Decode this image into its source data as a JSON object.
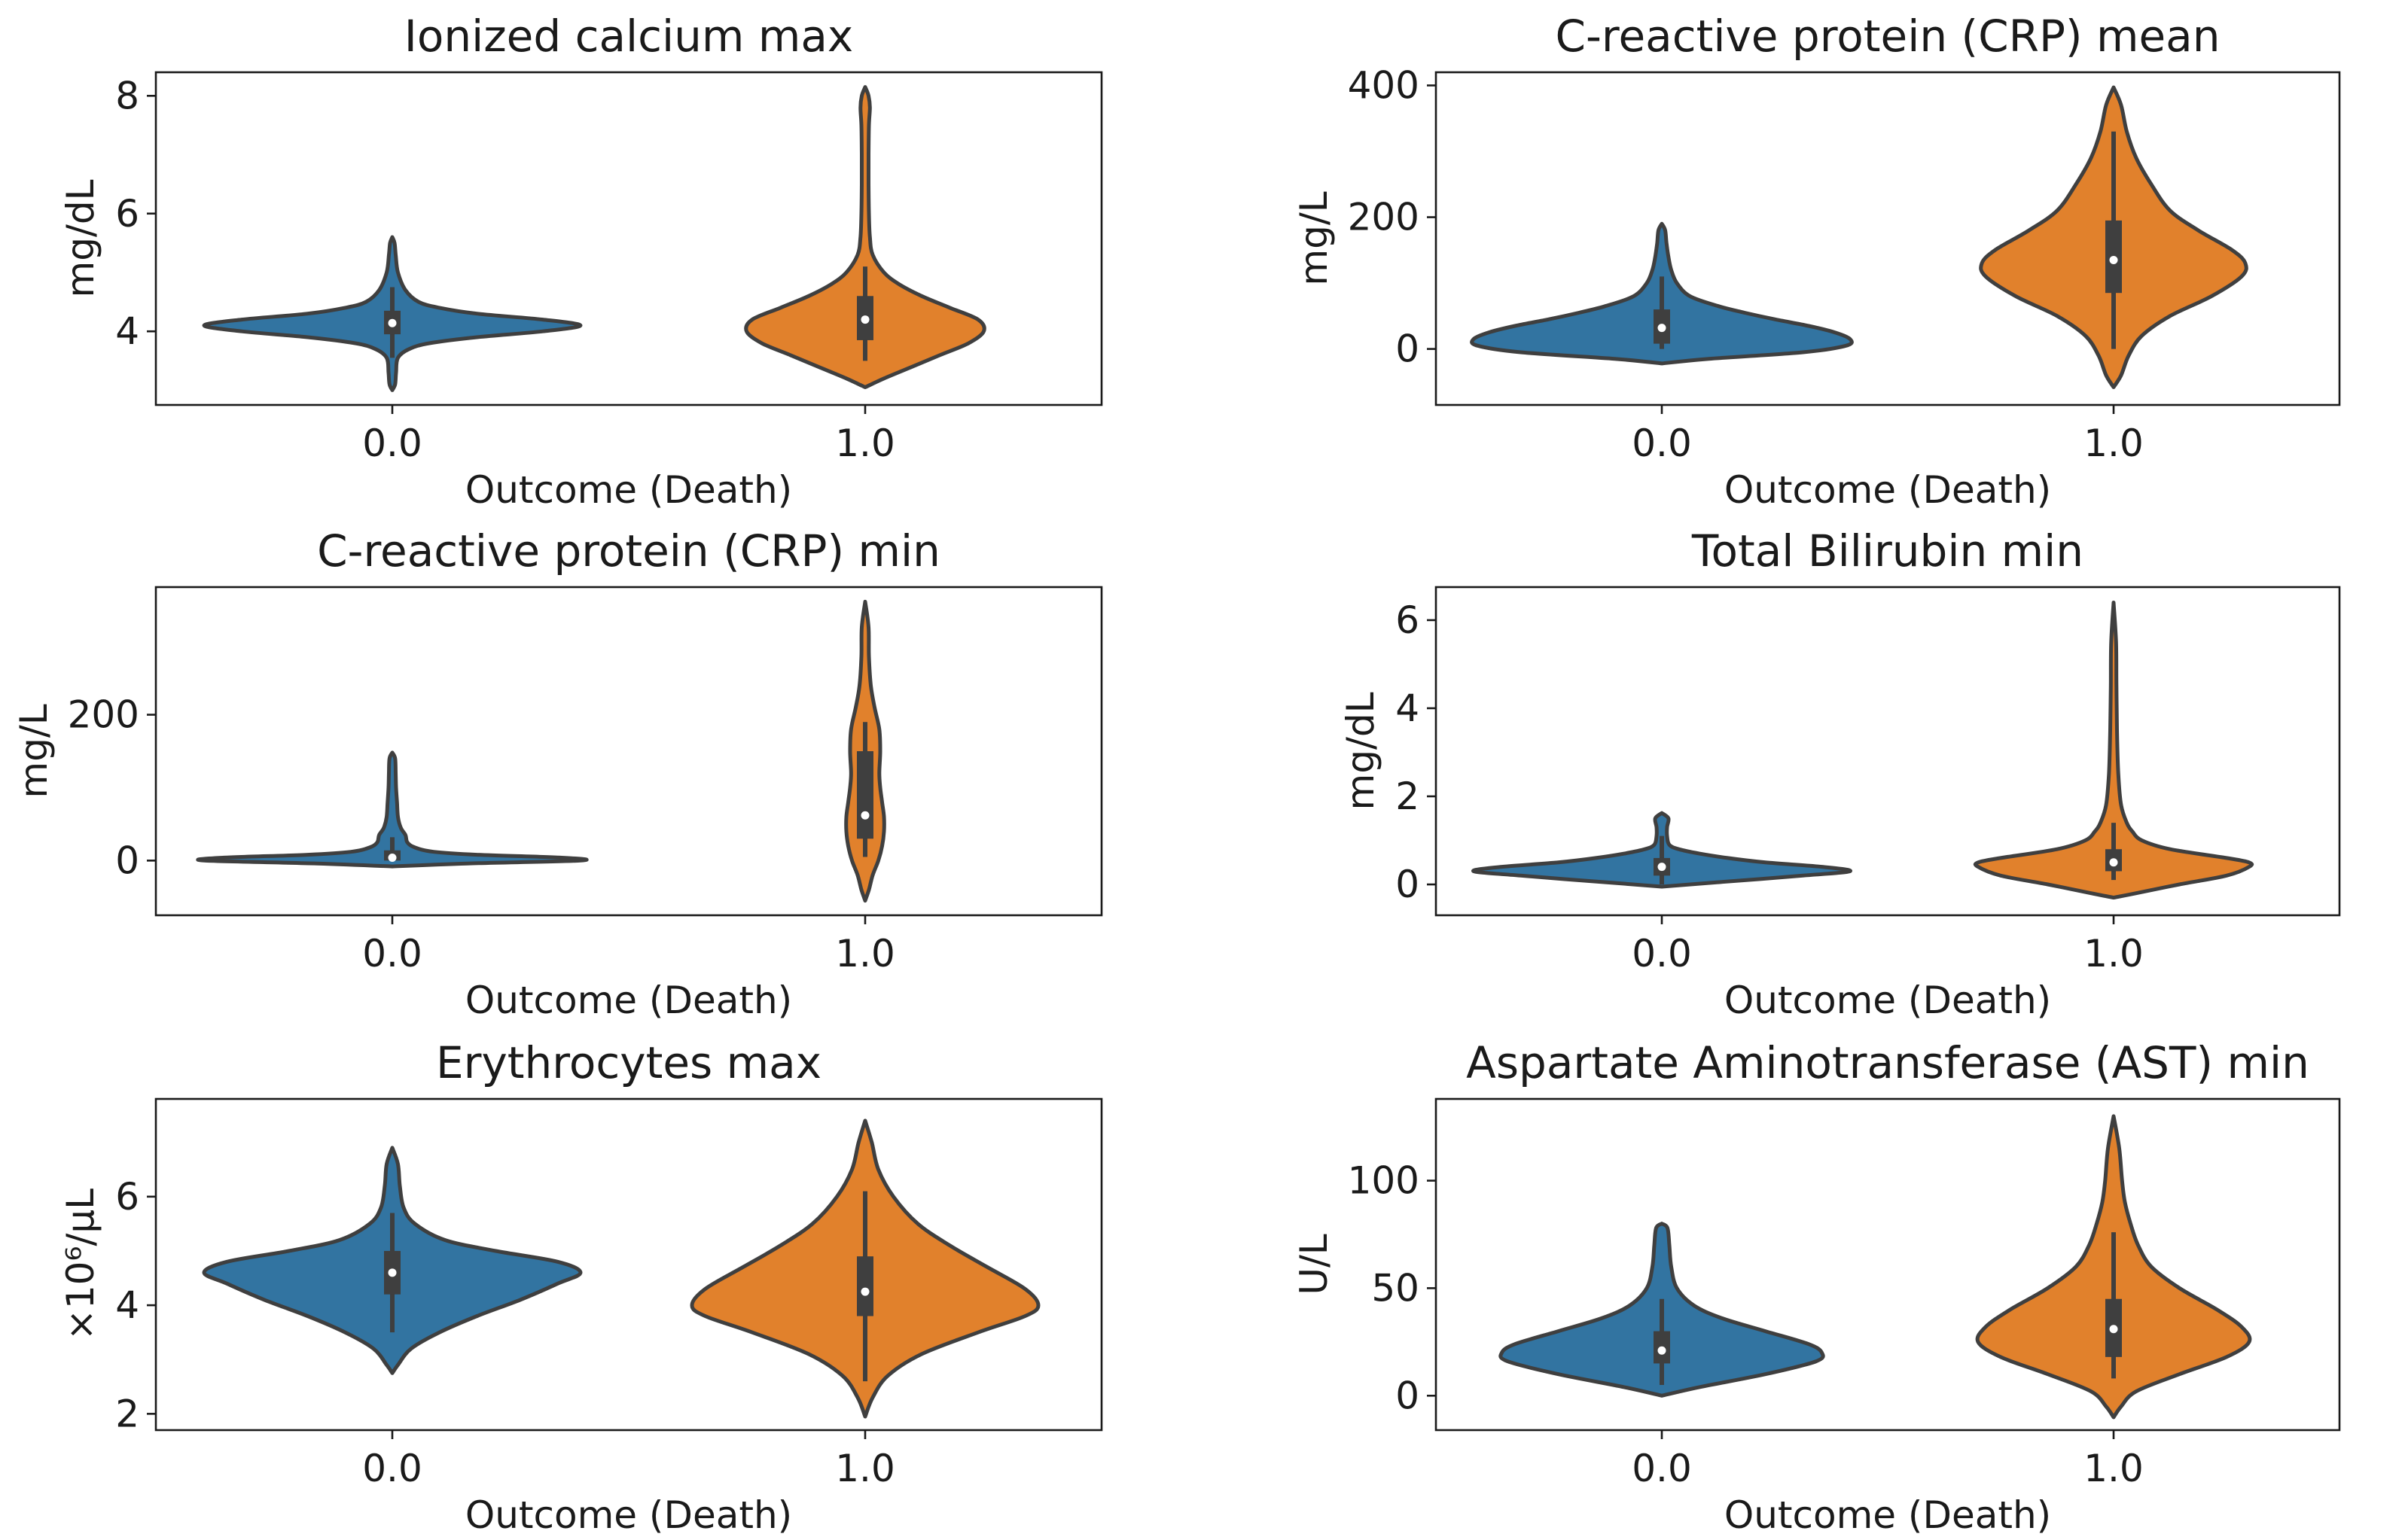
{
  "colors": {
    "outcome_0": "#3274a1",
    "outcome_1": "#e1812c"
  },
  "chart_data": [
    {
      "type": "violin",
      "title": "Ionized calcium  max",
      "xlabel": "Outcome (Death)",
      "ylabel": "mg/dL",
      "categories": [
        "0.0",
        "1.0"
      ],
      "yticks": [
        4,
        6,
        8
      ],
      "ylim": [
        2.75,
        8.4
      ],
      "series": [
        {
          "name": "0.0",
          "q1": 3.95,
          "median": 4.14,
          "q3": 4.35,
          "whisker_low": 3.55,
          "whisker_high": 4.75,
          "profile": [
            [
              3.0,
              0.0
            ],
            [
              3.1,
              0.015
            ],
            [
              3.3,
              0.02
            ],
            [
              3.55,
              0.03
            ],
            [
              3.7,
              0.09
            ],
            [
              3.8,
              0.2
            ],
            [
              3.9,
              0.45
            ],
            [
              4.0,
              0.8
            ],
            [
              4.1,
              1.0
            ],
            [
              4.2,
              0.8
            ],
            [
              4.3,
              0.45
            ],
            [
              4.4,
              0.25
            ],
            [
              4.5,
              0.14
            ],
            [
              4.7,
              0.07
            ],
            [
              5.0,
              0.03
            ],
            [
              5.3,
              0.018
            ],
            [
              5.5,
              0.012
            ],
            [
              5.6,
              0.0
            ]
          ]
        },
        {
          "name": "1.0",
          "q1": 3.85,
          "median": 4.2,
          "q3": 4.6,
          "whisker_low": 3.5,
          "whisker_high": 5.1,
          "profile": [
            [
              3.05,
              0.0
            ],
            [
              3.2,
              0.1
            ],
            [
              3.4,
              0.25
            ],
            [
              3.6,
              0.4
            ],
            [
              3.8,
              0.55
            ],
            [
              4.0,
              0.63
            ],
            [
              4.2,
              0.6
            ],
            [
              4.4,
              0.45
            ],
            [
              4.6,
              0.3
            ],
            [
              4.8,
              0.18
            ],
            [
              5.0,
              0.1
            ],
            [
              5.3,
              0.04
            ],
            [
              5.6,
              0.025
            ],
            [
              6.0,
              0.02
            ],
            [
              6.5,
              0.018
            ],
            [
              7.0,
              0.018
            ],
            [
              7.5,
              0.02
            ],
            [
              7.8,
              0.025
            ],
            [
              8.0,
              0.018
            ],
            [
              8.15,
              0.0
            ]
          ]
        }
      ]
    },
    {
      "type": "violin",
      "title": "C-reactive protein (CRP)  mean",
      "xlabel": "Outcome (Death)",
      "ylabel": "mg/L",
      "categories": [
        "0.0",
        "1.0"
      ],
      "yticks": [
        0,
        200,
        400
      ],
      "ylim": [
        -85,
        420
      ],
      "series": [
        {
          "name": "0.0",
          "q1": 8,
          "median": 32,
          "q3": 60,
          "whisker_low": 0,
          "whisker_high": 110,
          "profile": [
            [
              -22,
              0.0
            ],
            [
              -15,
              0.25
            ],
            [
              -5,
              0.75
            ],
            [
              5,
              0.98
            ],
            [
              15,
              1.0
            ],
            [
              25,
              0.92
            ],
            [
              35,
              0.78
            ],
            [
              45,
              0.6
            ],
            [
              55,
              0.44
            ],
            [
              65,
              0.3
            ],
            [
              80,
              0.15
            ],
            [
              100,
              0.08
            ],
            [
              120,
              0.05
            ],
            [
              140,
              0.035
            ],
            [
              160,
              0.025
            ],
            [
              180,
              0.018
            ],
            [
              190,
              0.0
            ]
          ]
        },
        {
          "name": "1.0",
          "q1": 85,
          "median": 135,
          "q3": 195,
          "whisker_low": 0,
          "whisker_high": 330,
          "profile": [
            [
              -58,
              0.0
            ],
            [
              -40,
              0.04
            ],
            [
              -10,
              0.08
            ],
            [
              20,
              0.15
            ],
            [
              50,
              0.3
            ],
            [
              80,
              0.52
            ],
            [
              110,
              0.68
            ],
            [
              130,
              0.7
            ],
            [
              150,
              0.63
            ],
            [
              180,
              0.45
            ],
            [
              210,
              0.3
            ],
            [
              250,
              0.2
            ],
            [
              290,
              0.12
            ],
            [
              330,
              0.07
            ],
            [
              370,
              0.04
            ],
            [
              397,
              0.0
            ]
          ]
        }
      ]
    },
    {
      "type": "violin",
      "title": "C-reactive protein (CRP)  min",
      "xlabel": "Outcome (Death)",
      "ylabel": "mg/L",
      "categories": [
        "0.0",
        "1.0"
      ],
      "yticks": [
        0,
        200
      ],
      "ylim": [
        -75,
        375
      ],
      "series": [
        {
          "name": "0.0",
          "q1": 0,
          "median": 4,
          "q3": 14,
          "whisker_low": 0,
          "whisker_high": 32,
          "profile": [
            [
              -8,
              0.0
            ],
            [
              -4,
              0.4
            ],
            [
              0,
              1.0
            ],
            [
              4,
              0.9
            ],
            [
              8,
              0.45
            ],
            [
              12,
              0.22
            ],
            [
              18,
              0.12
            ],
            [
              25,
              0.08
            ],
            [
              35,
              0.07
            ],
            [
              45,
              0.045
            ],
            [
              60,
              0.03
            ],
            [
              80,
              0.025
            ],
            [
              100,
              0.02
            ],
            [
              120,
              0.018
            ],
            [
              140,
              0.015
            ],
            [
              148,
              0.0
            ]
          ]
        },
        {
          "name": "1.0",
          "q1": 30,
          "median": 62,
          "q3": 150,
          "whisker_low": 5,
          "whisker_high": 190,
          "profile": [
            [
              -55,
              0.0
            ],
            [
              -40,
              0.02
            ],
            [
              -20,
              0.04
            ],
            [
              0,
              0.07
            ],
            [
              20,
              0.09
            ],
            [
              40,
              0.1
            ],
            [
              60,
              0.1
            ],
            [
              80,
              0.09
            ],
            [
              100,
              0.08
            ],
            [
              120,
              0.075
            ],
            [
              150,
              0.08
            ],
            [
              180,
              0.075
            ],
            [
              210,
              0.05
            ],
            [
              240,
              0.03
            ],
            [
              280,
              0.02
            ],
            [
              320,
              0.018
            ],
            [
              355,
              0.0
            ]
          ]
        }
      ]
    },
    {
      "type": "violin",
      "title": "Total Bilirubin  min",
      "xlabel": "Outcome (Death)",
      "ylabel": "mg/dL",
      "categories": [
        "0.0",
        "1.0"
      ],
      "yticks": [
        0,
        2,
        4,
        6
      ],
      "ylim": [
        -0.7,
        6.75
      ],
      "series": [
        {
          "name": "0.0",
          "q1": 0.2,
          "median": 0.4,
          "q3": 0.6,
          "whisker_low": 0.0,
          "whisker_high": 1.1,
          "profile": [
            [
              -0.05,
              0.0
            ],
            [
              0.05,
              0.3
            ],
            [
              0.2,
              0.75
            ],
            [
              0.3,
              1.0
            ],
            [
              0.4,
              0.85
            ],
            [
              0.5,
              0.55
            ],
            [
              0.6,
              0.35
            ],
            [
              0.7,
              0.2
            ],
            [
              0.8,
              0.09
            ],
            [
              0.9,
              0.04
            ],
            [
              1.1,
              0.028
            ],
            [
              1.3,
              0.028
            ],
            [
              1.5,
              0.035
            ],
            [
              1.62,
              0.0
            ]
          ]
        },
        {
          "name": "1.0",
          "q1": 0.3,
          "median": 0.5,
          "q3": 0.8,
          "whisker_low": 0.1,
          "whisker_high": 1.4,
          "profile": [
            [
              -0.3,
              0.0
            ],
            [
              -0.2,
              0.12
            ],
            [
              0.0,
              0.35
            ],
            [
              0.2,
              0.6
            ],
            [
              0.4,
              0.72
            ],
            [
              0.5,
              0.72
            ],
            [
              0.6,
              0.6
            ],
            [
              0.8,
              0.3
            ],
            [
              1.0,
              0.15
            ],
            [
              1.2,
              0.1
            ],
            [
              1.4,
              0.07
            ],
            [
              1.8,
              0.04
            ],
            [
              2.5,
              0.025
            ],
            [
              3.5,
              0.018
            ],
            [
              4.5,
              0.015
            ],
            [
              5.5,
              0.013
            ],
            [
              6.4,
              0.0
            ]
          ]
        }
      ]
    },
    {
      "type": "violin",
      "title": "Erythrocytes  max",
      "xlabel": "Outcome (Death)",
      "ylabel": "×10⁶/µL",
      "categories": [
        "0.0",
        "1.0"
      ],
      "yticks": [
        2,
        4,
        6
      ],
      "ylim": [
        1.7,
        7.8
      ],
      "series": [
        {
          "name": "0.0",
          "q1": 4.2,
          "median": 4.6,
          "q3": 5.0,
          "whisker_low": 3.5,
          "whisker_high": 5.7,
          "profile": [
            [
              2.75,
              0.0
            ],
            [
              2.9,
              0.03
            ],
            [
              3.2,
              0.1
            ],
            [
              3.5,
              0.25
            ],
            [
              3.8,
              0.45
            ],
            [
              4.1,
              0.68
            ],
            [
              4.4,
              0.88
            ],
            [
              4.6,
              1.0
            ],
            [
              4.8,
              0.88
            ],
            [
              5.0,
              0.55
            ],
            [
              5.2,
              0.28
            ],
            [
              5.5,
              0.12
            ],
            [
              5.8,
              0.06
            ],
            [
              6.2,
              0.04
            ],
            [
              6.6,
              0.03
            ],
            [
              6.9,
              0.0
            ]
          ]
        },
        {
          "name": "1.0",
          "q1": 3.8,
          "median": 4.25,
          "q3": 4.9,
          "whisker_low": 2.6,
          "whisker_high": 6.1,
          "profile": [
            [
              1.95,
              0.0
            ],
            [
              2.3,
              0.04
            ],
            [
              2.7,
              0.12
            ],
            [
              3.1,
              0.3
            ],
            [
              3.5,
              0.6
            ],
            [
              3.8,
              0.85
            ],
            [
              4.0,
              0.92
            ],
            [
              4.3,
              0.85
            ],
            [
              4.7,
              0.65
            ],
            [
              5.1,
              0.45
            ],
            [
              5.5,
              0.28
            ],
            [
              6.0,
              0.15
            ],
            [
              6.5,
              0.07
            ],
            [
              7.0,
              0.035
            ],
            [
              7.4,
              0.0
            ]
          ]
        }
      ]
    },
    {
      "type": "violin",
      "title": "Aspartate  Aminotransferase  (AST)  min",
      "xlabel": "Outcome (Death)",
      "ylabel": "U/L",
      "categories": [
        "0.0",
        "1.0"
      ],
      "yticks": [
        0,
        50,
        100
      ],
      "ylim": [
        -16,
        138
      ],
      "series": [
        {
          "name": "0.0",
          "q1": 15,
          "median": 21,
          "q3": 30,
          "whisker_low": 5,
          "whisker_high": 45,
          "profile": [
            [
              0,
              0.0
            ],
            [
              4,
              0.2
            ],
            [
              10,
              0.55
            ],
            [
              16,
              0.82
            ],
            [
              20,
              0.85
            ],
            [
              24,
              0.78
            ],
            [
              30,
              0.55
            ],
            [
              36,
              0.32
            ],
            [
              42,
              0.17
            ],
            [
              50,
              0.08
            ],
            [
              60,
              0.05
            ],
            [
              70,
              0.04
            ],
            [
              78,
              0.03
            ],
            [
              80,
              0.0
            ]
          ]
        },
        {
          "name": "1.0",
          "q1": 18,
          "median": 31,
          "q3": 45,
          "whisker_low": 8,
          "whisker_high": 76,
          "profile": [
            [
              -10,
              0.0
            ],
            [
              -5,
              0.04
            ],
            [
              2,
              0.12
            ],
            [
              10,
              0.35
            ],
            [
              18,
              0.6
            ],
            [
              25,
              0.72
            ],
            [
              32,
              0.68
            ],
            [
              40,
              0.55
            ],
            [
              50,
              0.35
            ],
            [
              60,
              0.2
            ],
            [
              70,
              0.13
            ],
            [
              80,
              0.09
            ],
            [
              90,
              0.06
            ],
            [
              100,
              0.045
            ],
            [
              115,
              0.03
            ],
            [
              130,
              0.0
            ]
          ]
        }
      ]
    }
  ]
}
